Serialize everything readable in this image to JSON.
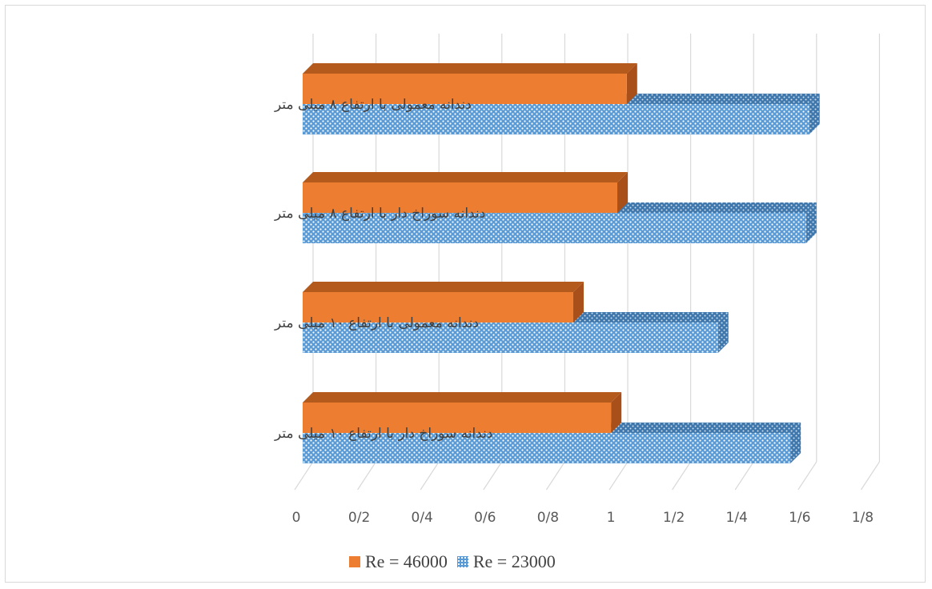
{
  "chart_data": {
    "type": "bar",
    "orientation": "horizontal",
    "style": "3d-clustered",
    "categories": [
      "دندانه معمولی با ارتفاع ۸ میلی متر",
      "دندانه سوراخ دار با ارتفاع ۸ میلی متر",
      "دندانه معمولی با ارتفاع ۱۰ میلی متر",
      "دندانه سوراخ دار با ارتفاع ۱۰ میلی متر"
    ],
    "series": [
      {
        "name": "Re = 46000",
        "values": [
          1.03,
          1.0,
          0.86,
          0.98
        ],
        "color": "#ED7D31"
      },
      {
        "name": "Re = 23000",
        "values": [
          1.61,
          1.6,
          1.32,
          1.55
        ],
        "color": "#5B9BD5",
        "pattern": "dotted"
      }
    ],
    "xlim": [
      0,
      1.8
    ],
    "xticks": [
      "0",
      "0/2",
      "0/4",
      "0/6",
      "0/8",
      "1",
      "1/2",
      "1/4",
      "1/6",
      "1/8"
    ],
    "grid": true,
    "legend_position": "bottom"
  }
}
